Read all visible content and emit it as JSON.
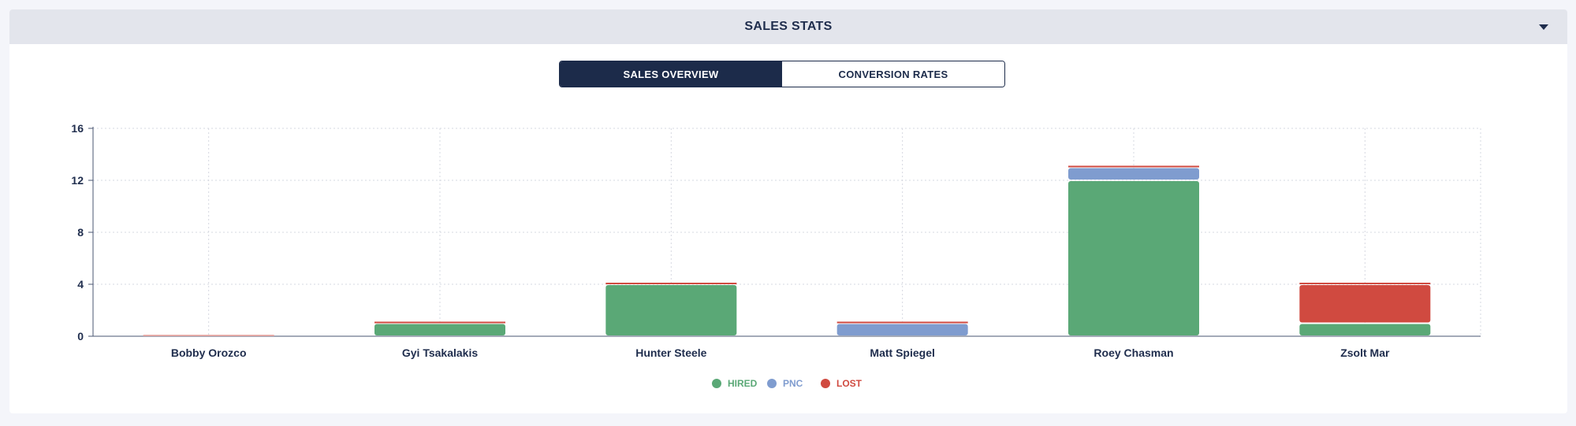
{
  "panel": {
    "title": "SALES STATS",
    "toggle_icon": "caret-down-icon"
  },
  "tabs": [
    {
      "label": "SALES OVERVIEW",
      "active": true
    },
    {
      "label": "CONVERSION RATES",
      "active": false
    }
  ],
  "chart_data": {
    "type": "bar",
    "stacked": true,
    "categories": [
      "Bobby Orozco",
      "Gyi Tsakalakis",
      "Hunter Steele",
      "Matt Spiegel",
      "Roey Chasman",
      "Zsolt Mar"
    ],
    "series": [
      {
        "name": "HIRED",
        "color": "#5aa876",
        "values": [
          0,
          1,
          4,
          0,
          12,
          1
        ]
      },
      {
        "name": "PNC",
        "color": "#7f9ccf",
        "values": [
          0,
          0,
          0,
          1,
          1,
          0
        ]
      },
      {
        "name": "LOST",
        "color": "#d04a40",
        "values": [
          0,
          0,
          0,
          0,
          0,
          3
        ]
      }
    ],
    "y_ticks": [
      "0",
      "4",
      "8",
      "12",
      "16"
    ],
    "ylim": [
      0,
      16
    ],
    "grid": true,
    "legend": "bottom-center"
  }
}
